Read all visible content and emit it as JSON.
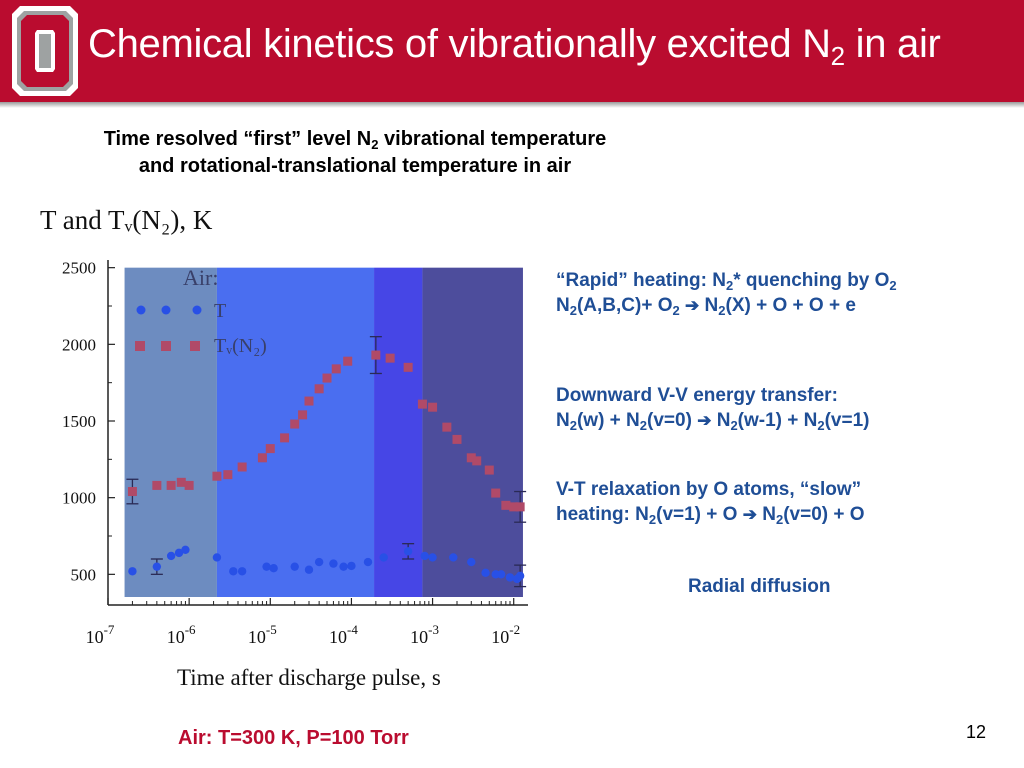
{
  "slide": {
    "title": "Chemical kinetics of vibrationally excited N",
    "title_sub": "2",
    "title_end": " in air",
    "subtitle": {
      "line1_a": "Time resolved “first” level N",
      "line1_sub": "2",
      "line1_b": " vibrational temperature",
      "line2": "and rotational-translational temperature in air"
    },
    "annotations": {
      "rapid": {
        "l1_a": "“Rapid” heating: N",
        "l1_sub": "2",
        "l1_b": "* quenching by O",
        "l1_sub2": "2",
        "l2_a": "N",
        "l2_sub": "2",
        "l2_b": "(A,B,C)+ O",
        "l2_sub2": "2",
        "l2_arrow": "➔",
        "l2_c": " N",
        "l2_sub3": "2",
        "l2_d": "(X) + O + O + e"
      },
      "vv": {
        "l1": "Downward V-V energy transfer:",
        "l2_a": "N",
        "l2_sub": "2",
        "l2_b": "(w) + N",
        "l2_sub2": "2",
        "l2_c": "(v=0) ",
        "l2_arrow": "➔",
        "l2_d": " N",
        "l2_sub3": "2",
        "l2_e": "(w-1) + N",
        "l2_sub4": "2",
        "l2_f": "(v=1)"
      },
      "vt": {
        "l1": "V-T relaxation by O atoms, “slow”",
        "l2_a": "heating: N",
        "l2_sub": "2",
        "l2_b": "(v=1) + O ",
        "l2_arrow": "➔",
        "l2_c": " N",
        "l2_sub2": "2",
        "l2_d": "(v=0) + O"
      },
      "radial": "Radial diffusion"
    },
    "conditions": "Air: T=300 K, P=100 Torr",
    "page_number": "12"
  },
  "colors": {
    "header": "#ba0c2f",
    "annotation_text": "#1f4e96",
    "conditions_text": "#ba0c2f",
    "region_1": "#6d8cc0",
    "region_2": "#4a6ef0",
    "region_3": "#4646e6",
    "region_4": "#4d4d9c",
    "t_marker": "#2850e6",
    "tv_marker": "#b04a68"
  },
  "chart_data": {
    "type": "scatter",
    "title": "T and Tᵥ(N₂), K",
    "xlabel": "Time after discharge pulse, s",
    "ylabel": "",
    "x_scale": "log",
    "xlim": [
      1e-07,
      0.015
    ],
    "ylim": [
      300,
      2550
    ],
    "x_ticks": [
      {
        "value": 1e-07,
        "base": "10",
        "exp": "-7"
      },
      {
        "value": 1e-06,
        "base": "10",
        "exp": "-6"
      },
      {
        "value": 1e-05,
        "base": "10",
        "exp": "-5"
      },
      {
        "value": 0.0001,
        "base": "10",
        "exp": "-4"
      },
      {
        "value": 0.001,
        "base": "10",
        "exp": "-3"
      },
      {
        "value": 0.01,
        "base": "10",
        "exp": "-2"
      }
    ],
    "y_ticks": [
      500,
      1000,
      1500,
      2000,
      2500
    ],
    "regions": [
      {
        "x_from": 1.6e-07,
        "x_to": 2.2e-06
      },
      {
        "x_from": 2.2e-06,
        "x_to": 0.00019
      },
      {
        "x_from": 0.00019,
        "x_to": 0.00075
      },
      {
        "x_from": 0.00075,
        "x_to": 0.013
      }
    ],
    "legend": {
      "title": "Air:",
      "position": "top-left",
      "items": [
        {
          "label": "T",
          "series": "T"
        },
        {
          "label": "Tᵥ(N₂)",
          "series": "Tv"
        }
      ]
    },
    "series": [
      {
        "name": "T",
        "marker": "circle",
        "points": [
          {
            "x": 2e-07,
            "y": 520
          },
          {
            "x": 4e-07,
            "y": 550,
            "err": 50
          },
          {
            "x": 6e-07,
            "y": 620
          },
          {
            "x": 7.5e-07,
            "y": 640
          },
          {
            "x": 9e-07,
            "y": 660
          },
          {
            "x": 2.2e-06,
            "y": 610
          },
          {
            "x": 3.5e-06,
            "y": 520
          },
          {
            "x": 4.5e-06,
            "y": 520
          },
          {
            "x": 9e-06,
            "y": 550
          },
          {
            "x": 1.1e-05,
            "y": 540
          },
          {
            "x": 2e-05,
            "y": 550
          },
          {
            "x": 3e-05,
            "y": 530
          },
          {
            "x": 4e-05,
            "y": 580
          },
          {
            "x": 6e-05,
            "y": 570
          },
          {
            "x": 8e-05,
            "y": 550
          },
          {
            "x": 0.0001,
            "y": 555
          },
          {
            "x": 0.00016,
            "y": 580
          },
          {
            "x": 0.00025,
            "y": 610
          },
          {
            "x": 0.0005,
            "y": 650,
            "err": 50
          },
          {
            "x": 0.0008,
            "y": 620
          },
          {
            "x": 0.001,
            "y": 610
          },
          {
            "x": 0.0018,
            "y": 610
          },
          {
            "x": 0.003,
            "y": 580
          },
          {
            "x": 0.0045,
            "y": 510
          },
          {
            "x": 0.006,
            "y": 500
          },
          {
            "x": 0.007,
            "y": 500
          },
          {
            "x": 0.009,
            "y": 480
          },
          {
            "x": 0.011,
            "y": 470
          },
          {
            "x": 0.012,
            "y": 490,
            "err": 70
          }
        ]
      },
      {
        "name": "Tᵥ(N₂)",
        "marker": "square",
        "points": [
          {
            "x": 2e-07,
            "y": 1040,
            "err": 80
          },
          {
            "x": 4e-07,
            "y": 1080
          },
          {
            "x": 6e-07,
            "y": 1080
          },
          {
            "x": 8e-07,
            "y": 1100
          },
          {
            "x": 1e-06,
            "y": 1080
          },
          {
            "x": 2.2e-06,
            "y": 1140
          },
          {
            "x": 3e-06,
            "y": 1150
          },
          {
            "x": 4.5e-06,
            "y": 1200
          },
          {
            "x": 8e-06,
            "y": 1260
          },
          {
            "x": 1e-05,
            "y": 1320
          },
          {
            "x": 1.5e-05,
            "y": 1390
          },
          {
            "x": 2e-05,
            "y": 1480
          },
          {
            "x": 2.5e-05,
            "y": 1540
          },
          {
            "x": 3e-05,
            "y": 1630
          },
          {
            "x": 4e-05,
            "y": 1710
          },
          {
            "x": 5e-05,
            "y": 1780
          },
          {
            "x": 6.5e-05,
            "y": 1840
          },
          {
            "x": 9e-05,
            "y": 1890
          },
          {
            "x": 0.0002,
            "y": 1930,
            "err": 120
          },
          {
            "x": 0.0003,
            "y": 1910
          },
          {
            "x": 0.0005,
            "y": 1850
          },
          {
            "x": 0.00075,
            "y": 1610
          },
          {
            "x": 0.001,
            "y": 1590
          },
          {
            "x": 0.0015,
            "y": 1460
          },
          {
            "x": 0.002,
            "y": 1380
          },
          {
            "x": 0.003,
            "y": 1260
          },
          {
            "x": 0.0035,
            "y": 1240
          },
          {
            "x": 0.005,
            "y": 1180
          },
          {
            "x": 0.006,
            "y": 1030
          },
          {
            "x": 0.008,
            "y": 950
          },
          {
            "x": 0.01,
            "y": 940
          },
          {
            "x": 0.012,
            "y": 940,
            "err": 100
          }
        ]
      }
    ]
  }
}
